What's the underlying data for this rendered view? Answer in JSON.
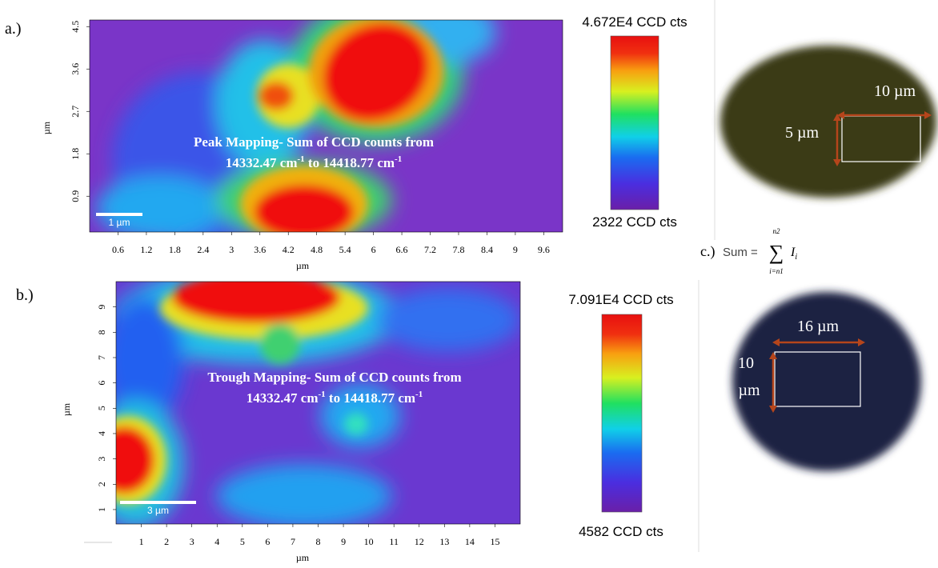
{
  "chart_data": [
    {
      "type": "heatmap",
      "panel_label": "a.)",
      "xlabel": "µm",
      "ylabel": "µm",
      "xlim": [
        0,
        10
      ],
      "ylim": [
        0.14,
        4.64
      ],
      "xticks": [
        0.6,
        1.2,
        1.8,
        2.4,
        3,
        3.6,
        4.2,
        4.8,
        5.4,
        6,
        6.6,
        7.2,
        7.8,
        8.4,
        9,
        9.6
      ],
      "yticks": [
        0.9,
        1.8,
        2.7,
        3.6,
        4.5
      ],
      "colorbar": {
        "max_label": "4.672E4 CCD cts",
        "min_label": "2322 CCD cts"
      },
      "annotation": {
        "line1": "Peak Mapping- Sum of CCD counts from",
        "line2": [
          "14332.47 cm",
          "-1",
          " to 14418.77 cm",
          "-1"
        ]
      },
      "scale_bar": "1 µm",
      "photo": {
        "width_label": "10 µm",
        "height_label": [
          "5 µm"
        ]
      }
    },
    {
      "type": "heatmap",
      "panel_label": "b.)",
      "xlabel": "µm",
      "ylabel": "µm",
      "xlim": [
        0,
        16
      ],
      "ylim": [
        0.43,
        10
      ],
      "xticks": [
        1,
        2,
        3,
        4,
        5,
        6,
        7,
        8,
        9,
        10,
        11,
        12,
        13,
        14,
        15
      ],
      "yticks": [
        1,
        2,
        3,
        4,
        5,
        6,
        7,
        8,
        9
      ],
      "colorbar": {
        "max_label": "7.091E4 CCD cts",
        "min_label": "4582 CCD cts"
      },
      "annotation": {
        "line1": "Trough Mapping- Sum of CCD counts from",
        "line2": [
          "14332.47 cm",
          "-1",
          " to 14418.77 cm",
          "-1"
        ]
      },
      "scale_bar": "3 µm",
      "photo": {
        "width_label": "16 µm",
        "height_label": [
          "10",
          "µm"
        ]
      }
    }
  ],
  "formula": {
    "label": "c.)",
    "lhs": "Sum =",
    "symbol": "∑",
    "upper": "n2",
    "lower": "i=n1",
    "term": "I",
    "sub": "i"
  }
}
